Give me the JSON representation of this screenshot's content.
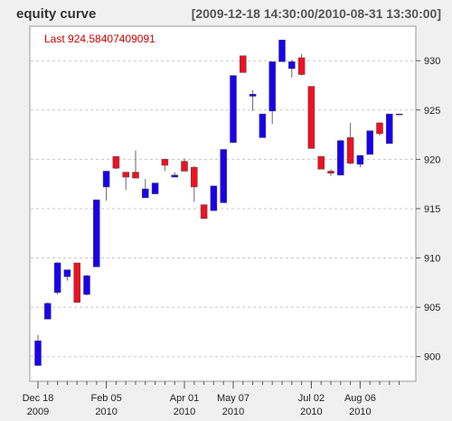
{
  "chart_data": {
    "type": "candlestick",
    "title": "equity curve",
    "date_range": "[2009-12-18 14:30:00/2010-08-31 13:30:00]",
    "last_label": "Last 924.58407409091",
    "ylim": [
      897.5,
      933.5
    ],
    "y_ticks": [
      900,
      905,
      910,
      915,
      920,
      925,
      930
    ],
    "y_tick_labels": [
      "900",
      "905",
      "910",
      "915",
      "920",
      "925",
      "930"
    ],
    "grid": true,
    "x_ticks": [
      {
        "index": 0,
        "label": "Dec 18",
        "year": "2009"
      },
      {
        "index": 7,
        "label": "Feb 05",
        "year": "2010"
      },
      {
        "index": 15,
        "label": "Apr 01",
        "year": "2010"
      },
      {
        "index": 20,
        "label": "May 07",
        "year": "2010"
      },
      {
        "index": 28,
        "label": "Jul 02",
        "year": "2010"
      },
      {
        "index": 33,
        "label": "Aug 06",
        "year": "2010"
      }
    ],
    "up_color": "#1a00ee",
    "down_color": "#ee1122",
    "candles": [
      {
        "open": 899.1,
        "high": 902.2,
        "low": 899.1,
        "close": 901.6
      },
      {
        "open": 903.8,
        "high": 905.5,
        "low": 903.8,
        "close": 905.4
      },
      {
        "open": 906.5,
        "high": 909.6,
        "low": 906.3,
        "close": 909.5
      },
      {
        "open": 908.1,
        "high": 908.8,
        "low": 907.7,
        "close": 908.8
      },
      {
        "open": 909.5,
        "high": 909.5,
        "low": 905.5,
        "close": 905.5
      },
      {
        "open": 906.3,
        "high": 908.3,
        "low": 906.2,
        "close": 908.2
      },
      {
        "open": 909.1,
        "high": 915.9,
        "low": 909.1,
        "close": 915.9
      },
      {
        "open": 917.2,
        "high": 918.8,
        "low": 915.8,
        "close": 918.8
      },
      {
        "open": 920.3,
        "high": 920.3,
        "low": 919.0,
        "close": 919.1
      },
      {
        "open": 918.7,
        "high": 918.7,
        "low": 916.9,
        "close": 918.2
      },
      {
        "open": 918.7,
        "high": 920.9,
        "low": 918.1,
        "close": 918.1
      },
      {
        "open": 916.1,
        "high": 918.0,
        "low": 916.1,
        "close": 917.0
      },
      {
        "open": 916.5,
        "high": 917.6,
        "low": 916.5,
        "close": 917.6
      },
      {
        "open": 920.0,
        "high": 920.1,
        "low": 918.8,
        "close": 919.4
      },
      {
        "open": 918.2,
        "high": 918.7,
        "low": 918.2,
        "close": 918.4
      },
      {
        "open": 919.8,
        "high": 920.1,
        "low": 918.8,
        "close": 918.8
      },
      {
        "open": 919.2,
        "high": 919.3,
        "low": 915.7,
        "close": 917.2
      },
      {
        "open": 915.4,
        "high": 915.4,
        "low": 914.0,
        "close": 914.0
      },
      {
        "open": 914.8,
        "high": 917.3,
        "low": 914.8,
        "close": 917.3
      },
      {
        "open": 915.6,
        "high": 921.0,
        "low": 915.6,
        "close": 921.0
      },
      {
        "open": 921.7,
        "high": 928.5,
        "low": 921.7,
        "close": 928.5
      },
      {
        "open": 930.5,
        "high": 930.5,
        "low": 928.8,
        "close": 928.8
      },
      {
        "open": 926.4,
        "high": 927.0,
        "low": 924.9,
        "close": 926.6
      },
      {
        "open": 922.2,
        "high": 924.6,
        "low": 922.2,
        "close": 924.6
      },
      {
        "open": 924.9,
        "high": 929.9,
        "low": 923.6,
        "close": 929.9
      },
      {
        "open": 929.9,
        "high": 932.1,
        "low": 929.9,
        "close": 932.1
      },
      {
        "open": 929.2,
        "high": 930.1,
        "low": 928.3,
        "close": 929.9
      },
      {
        "open": 930.3,
        "high": 930.7,
        "low": 928.5,
        "close": 928.6
      },
      {
        "open": 927.4,
        "high": 927.4,
        "low": 921.1,
        "close": 921.1
      },
      {
        "open": 920.3,
        "high": 920.3,
        "low": 919.0,
        "close": 919.0
      },
      {
        "open": 918.8,
        "high": 919.0,
        "low": 918.3,
        "close": 918.6
      },
      {
        "open": 918.4,
        "high": 922.0,
        "low": 918.4,
        "close": 921.9
      },
      {
        "open": 922.2,
        "high": 923.7,
        "low": 919.5,
        "close": 919.6
      },
      {
        "open": 919.5,
        "high": 920.4,
        "low": 919.2,
        "close": 920.4
      },
      {
        "open": 920.5,
        "high": 922.9,
        "low": 920.5,
        "close": 922.9
      },
      {
        "open": 923.7,
        "high": 923.7,
        "low": 922.4,
        "close": 922.6
      },
      {
        "open": 921.6,
        "high": 924.6,
        "low": 921.6,
        "close": 924.6
      },
      {
        "open": 924.6,
        "high": 924.6,
        "low": 924.5,
        "close": 924.6
      }
    ]
  }
}
